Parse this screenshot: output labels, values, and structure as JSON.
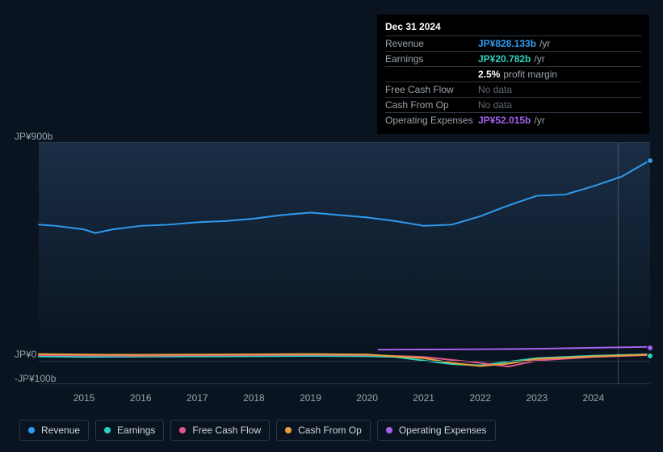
{
  "tooltip": {
    "title": "Dec 31 2024",
    "rows": [
      {
        "label": "Revenue",
        "value": "JP¥828.133b",
        "suffix": "/yr",
        "color": "#2e9bf0",
        "nodata": false
      },
      {
        "label": "Earnings",
        "value": "JP¥20.782b",
        "suffix": "/yr",
        "color": "#2cd3c0",
        "nodata": false
      },
      {
        "label": "",
        "value": "2.5%",
        "suffix": "profit margin",
        "color": "#ffffff",
        "nodata": false
      },
      {
        "label": "Free Cash Flow",
        "value": "No data",
        "suffix": "",
        "color": "",
        "nodata": true
      },
      {
        "label": "Cash From Op",
        "value": "No data",
        "suffix": "",
        "color": "",
        "nodata": true
      },
      {
        "label": "Operating Expenses",
        "value": "JP¥52.015b",
        "suffix": "/yr",
        "color": "#a462f0",
        "nodata": false
      }
    ]
  },
  "chart": {
    "type": "line",
    "background_color": "#0a1420",
    "grid_color": "#2a3846",
    "text_color": "#9aa3ac",
    "x_range": [
      2014.2,
      2025.0
    ],
    "x_ticks": [
      2015,
      2016,
      2017,
      2018,
      2019,
      2020,
      2021,
      2022,
      2023,
      2024
    ],
    "y_range": [
      -100,
      900
    ],
    "y_ticks": [
      {
        "v": 900,
        "label": "JP¥900b"
      },
      {
        "v": 0,
        "label": "JP¥0"
      },
      {
        "v": -100,
        "label": "-JP¥100b"
      }
    ],
    "hover_x": 2025.0,
    "line_width": 2,
    "series": [
      {
        "name": "Revenue",
        "color": "#2e9bf0",
        "endpoint": true,
        "x": [
          2014.2,
          2014.5,
          2015,
          2015.2,
          2015.5,
          2016,
          2016.5,
          2017,
          2017.5,
          2018,
          2018.5,
          2019,
          2019.5,
          2020,
          2020.5,
          2021,
          2021.5,
          2022,
          2022.5,
          2023,
          2023.5,
          2024,
          2024.5,
          2025
        ],
        "y": [
          560,
          555,
          540,
          525,
          540,
          555,
          560,
          570,
          575,
          585,
          600,
          610,
          600,
          590,
          575,
          555,
          560,
          595,
          640,
          680,
          685,
          720,
          760,
          828
        ]
      },
      {
        "name": "Earnings",
        "color": "#2cd3c0",
        "endpoint": true,
        "x": [
          2014.2,
          2015,
          2016,
          2017,
          2018,
          2019,
          2020,
          2020.5,
          2021,
          2021.5,
          2022,
          2022.5,
          2023,
          2024,
          2025
        ],
        "y": [
          12,
          10,
          11,
          12,
          13,
          14,
          13,
          10,
          -5,
          -20,
          -25,
          -10,
          5,
          15,
          21
        ]
      },
      {
        "name": "Free Cash Flow",
        "color": "#e4568b",
        "endpoint": false,
        "x": [
          2014.2,
          2015,
          2016,
          2017,
          2018,
          2019,
          2020,
          2021,
          2022,
          2022.5,
          2023,
          2024,
          2025
        ],
        "y": [
          18,
          16,
          15,
          17,
          18,
          19,
          18,
          10,
          -15,
          -30,
          -5,
          10,
          18
        ]
      },
      {
        "name": "Cash From Op",
        "color": "#e6a23c",
        "endpoint": false,
        "x": [
          2014.2,
          2015,
          2016,
          2017,
          2018,
          2019,
          2020,
          2021,
          2021.5,
          2022,
          2022.5,
          2023,
          2024,
          2025
        ],
        "y": [
          22,
          20,
          19,
          20,
          21,
          22,
          20,
          5,
          -15,
          -28,
          -18,
          2,
          12,
          20
        ]
      },
      {
        "name": "Operating Expenses",
        "color": "#a462f0",
        "endpoint": true,
        "x": [
          2020.2,
          2021,
          2022,
          2023,
          2024,
          2025
        ],
        "y": [
          40,
          41,
          42,
          44,
          48,
          52
        ]
      }
    ]
  },
  "legend": {
    "items": [
      {
        "label": "Revenue",
        "color": "#2e9bf0"
      },
      {
        "label": "Earnings",
        "color": "#2cd3c0"
      },
      {
        "label": "Free Cash Flow",
        "color": "#e4568b"
      },
      {
        "label": "Cash From Op",
        "color": "#e6a23c"
      },
      {
        "label": "Operating Expenses",
        "color": "#a462f0"
      }
    ]
  }
}
